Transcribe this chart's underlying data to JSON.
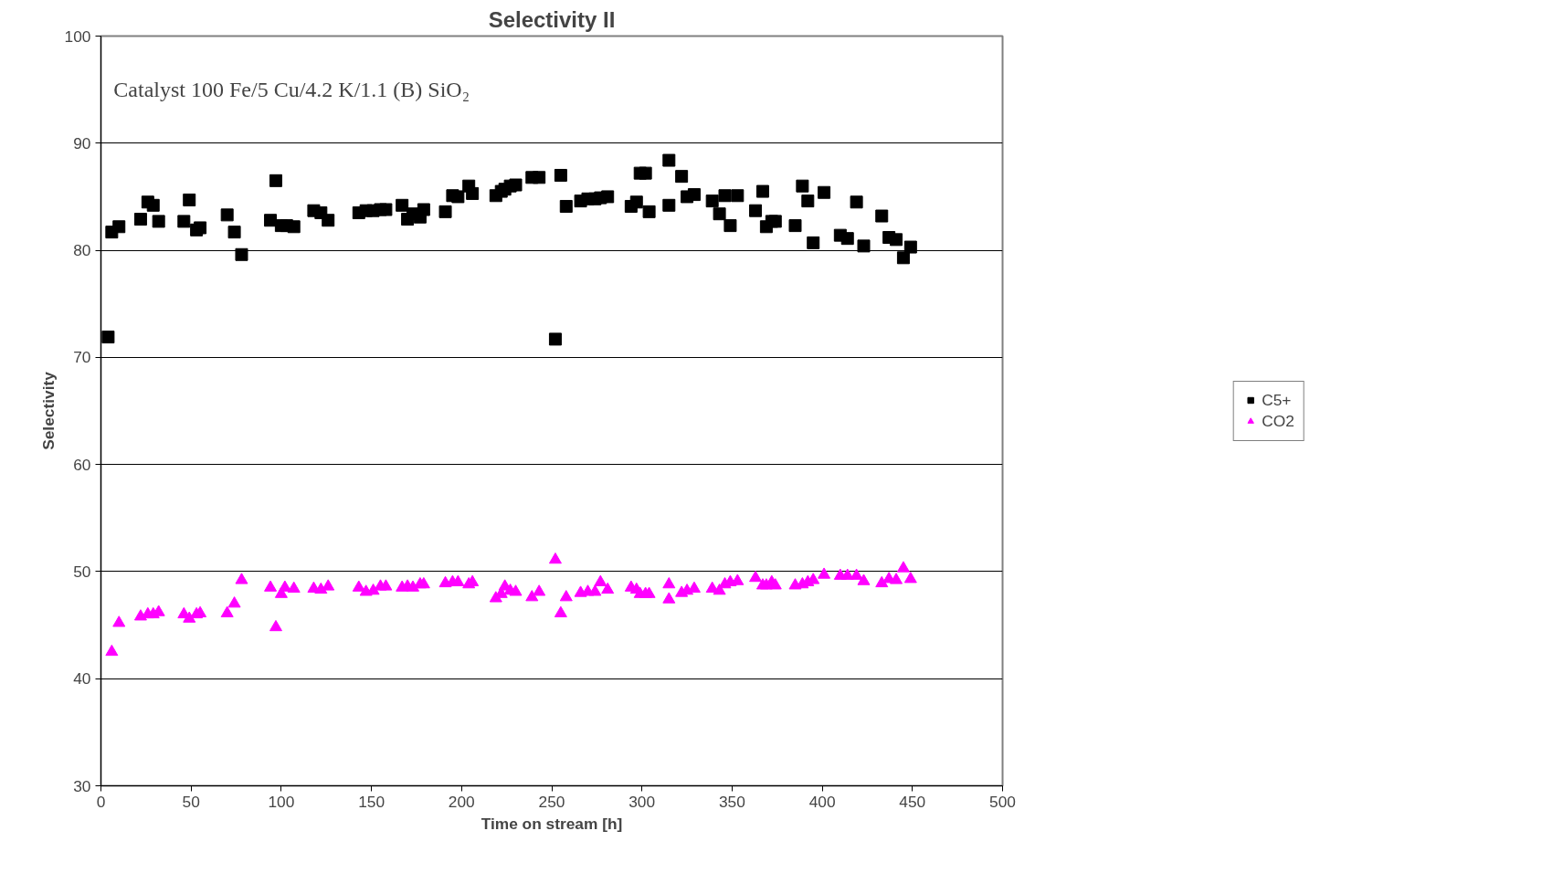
{
  "chart_data": {
    "type": "scatter",
    "title": "Selectivity II",
    "xlabel": "Time on stream [h]",
    "ylabel": "Selectivity",
    "annotations": [
      "Catalyst 100 Fe/5 Cu/4.2 K/1.1 (B) SiO₂"
    ],
    "xlim": [
      0,
      500
    ],
    "xticks": [
      0,
      50,
      100,
      150,
      200,
      250,
      300,
      350,
      400,
      450,
      500
    ],
    "ylim": [
      30,
      100
    ],
    "yticks": [
      30,
      40,
      50,
      60,
      70,
      80,
      90,
      100
    ],
    "grid": "y",
    "legend": "right",
    "series": [
      {
        "name": "C5+",
        "color": "#000000",
        "marker": "square",
        "x": [
          4,
          6,
          10,
          22,
          26,
          29,
          32,
          46,
          49,
          53,
          55,
          70,
          74,
          78,
          94,
          97,
          100,
          103,
          107,
          118,
          122,
          126,
          143,
          147,
          151,
          155,
          158,
          167,
          170,
          173,
          177,
          179,
          191,
          195,
          198,
          204,
          206,
          219,
          222,
          224,
          227,
          230,
          239,
          243,
          252,
          255,
          258,
          266,
          270,
          274,
          277,
          281,
          294,
          297,
          299,
          302,
          304,
          315,
          315,
          322,
          325,
          329,
          339,
          343,
          346,
          349,
          353,
          363,
          367,
          369,
          372,
          374,
          385,
          389,
          392,
          395,
          401,
          410,
          414,
          419,
          423,
          433,
          437,
          441,
          445,
          449
        ],
        "values": [
          71.9,
          81.7,
          82.2,
          82.9,
          84.5,
          84.2,
          82.7,
          82.7,
          84.7,
          81.9,
          82.1,
          83.3,
          81.7,
          79.6,
          82.8,
          86.5,
          82.3,
          82.3,
          82.2,
          83.7,
          83.5,
          82.8,
          83.5,
          83.7,
          83.7,
          83.8,
          83.8,
          84.2,
          82.9,
          83.4,
          83.1,
          83.8,
          83.6,
          85.1,
          85.0,
          86.0,
          85.3,
          85.1,
          85.5,
          85.7,
          86.0,
          86.1,
          86.8,
          86.8,
          71.7,
          87.0,
          84.1,
          84.6,
          84.8,
          84.8,
          84.9,
          85.0,
          84.1,
          84.5,
          87.2,
          87.2,
          83.6,
          84.2,
          88.4,
          86.9,
          85.0,
          85.2,
          84.6,
          83.4,
          85.1,
          82.3,
          85.1,
          83.7,
          85.5,
          82.2,
          82.7,
          82.7,
          82.3,
          86.0,
          84.6,
          80.7,
          85.4,
          81.4,
          81.1,
          84.5,
          80.4,
          83.2,
          81.2,
          81.0,
          79.3,
          80.3
        ]
      },
      {
        "name": "CO2",
        "color": "#ff00ff",
        "marker": "triangle",
        "x": [
          6,
          10,
          22,
          26,
          29,
          32,
          46,
          49,
          53,
          55,
          70,
          74,
          78,
          94,
          97,
          100,
          102,
          107,
          118,
          122,
          126,
          143,
          147,
          151,
          155,
          158,
          167,
          170,
          173,
          177,
          179,
          191,
          195,
          198,
          204,
          206,
          219,
          222,
          224,
          227,
          230,
          239,
          243,
          252,
          255,
          258,
          266,
          270,
          274,
          277,
          281,
          294,
          297,
          299,
          302,
          304,
          315,
          315,
          322,
          325,
          329,
          339,
          343,
          346,
          349,
          353,
          363,
          367,
          369,
          372,
          374,
          385,
          389,
          392,
          395,
          401,
          410,
          414,
          419,
          423,
          433,
          437,
          441,
          445,
          449
        ],
        "values": [
          42.5,
          45.2,
          45.8,
          46.0,
          46.0,
          46.2,
          46.0,
          45.6,
          46.0,
          46.1,
          46.1,
          47.0,
          49.2,
          48.5,
          44.8,
          47.9,
          48.5,
          48.4,
          48.4,
          48.3,
          48.6,
          48.5,
          48.1,
          48.2,
          48.6,
          48.6,
          48.5,
          48.6,
          48.5,
          48.8,
          48.8,
          48.9,
          49.0,
          49.0,
          48.8,
          49.0,
          47.5,
          47.9,
          48.6,
          48.2,
          48.1,
          47.6,
          48.1,
          51.1,
          46.1,
          47.6,
          48.0,
          48.1,
          48.1,
          49.0,
          48.3,
          48.5,
          48.3,
          47.9,
          47.9,
          47.9,
          48.8,
          47.4,
          48.0,
          48.2,
          48.4,
          48.4,
          48.2,
          48.8,
          49.0,
          49.1,
          49.4,
          48.7,
          48.7,
          49.0,
          48.7,
          48.7,
          48.8,
          49.0,
          49.2,
          49.7,
          49.6,
          49.6,
          49.6,
          49.1,
          48.9,
          49.3,
          49.2,
          50.3,
          49.3
        ]
      }
    ]
  }
}
